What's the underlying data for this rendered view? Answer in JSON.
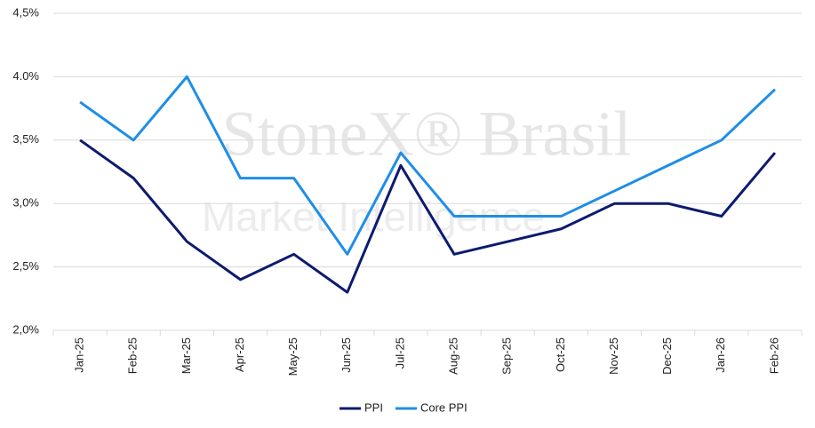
{
  "chart_data": {
    "type": "line",
    "watermark": [
      "StoneX® Brasil",
      "Market Intelligence"
    ],
    "categories": [
      "Jan-25",
      "Feb-25",
      "Mar-25",
      "Apr-25",
      "May-25",
      "Jun-25",
      "Jul-25",
      "Aug-25",
      "Sep-25",
      "Oct-25",
      "Nov-25",
      "Dec-25",
      "Jan-26",
      "Feb-26"
    ],
    "series": [
      {
        "name": "PPI",
        "color": "#0d1b6e",
        "values": [
          3.5,
          3.2,
          2.7,
          2.4,
          2.6,
          2.3,
          3.3,
          2.6,
          2.7,
          2.8,
          3.0,
          3.0,
          2.9,
          3.4
        ]
      },
      {
        "name": "Core PPI",
        "color": "#1e8ee6",
        "values": [
          3.8,
          3.5,
          4.0,
          3.2,
          3.2,
          2.6,
          3.4,
          2.9,
          2.9,
          2.9,
          3.1,
          3.3,
          3.5,
          3.9
        ]
      }
    ],
    "ylim": [
      2.0,
      4.5
    ],
    "yticks": [
      {
        "value": 2.0,
        "label": "2,0%"
      },
      {
        "value": 2.5,
        "label": "2,5%"
      },
      {
        "value": 3.0,
        "label": "3,0%"
      },
      {
        "value": 3.5,
        "label": "3,5%"
      },
      {
        "value": 4.0,
        "label": "4.0%"
      },
      {
        "value": 4.5,
        "label": "4,5%"
      }
    ],
    "grid": true
  }
}
